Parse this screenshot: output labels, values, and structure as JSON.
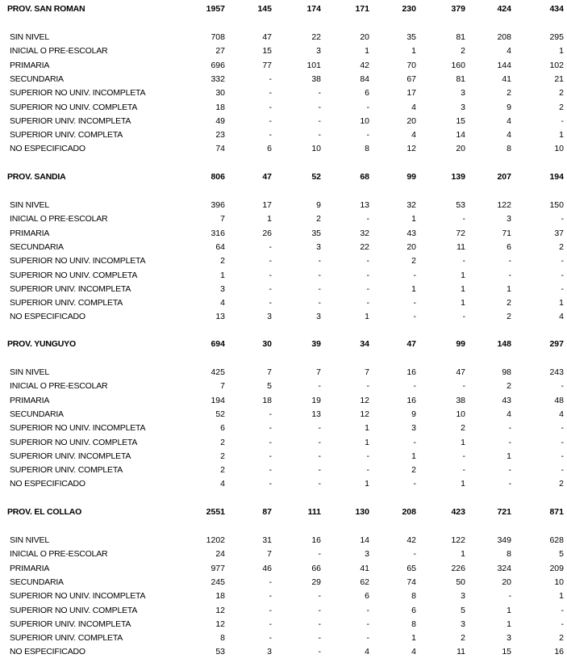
{
  "sections": [
    {
      "title": "PROV. SAN ROMAN",
      "totals": [
        "1957",
        "145",
        "174",
        "171",
        "230",
        "379",
        "424",
        "434"
      ],
      "rows": [
        {
          "label": "SIN NIVEL",
          "values": [
            "708",
            "47",
            "22",
            "20",
            "35",
            "81",
            "208",
            "295"
          ]
        },
        {
          "label": "INICIAL O PRE-ESCOLAR",
          "values": [
            "27",
            "15",
            "3",
            "1",
            "1",
            "2",
            "4",
            "1"
          ]
        },
        {
          "label": "PRIMARIA",
          "values": [
            "696",
            "77",
            "101",
            "42",
            "70",
            "160",
            "144",
            "102"
          ]
        },
        {
          "label": "SECUNDARIA",
          "values": [
            "332",
            "-",
            "38",
            "84",
            "67",
            "81",
            "41",
            "21"
          ]
        },
        {
          "label": "SUPERIOR NO UNIV. INCOMPLETA",
          "values": [
            "30",
            "-",
            "-",
            "6",
            "17",
            "3",
            "2",
            "2"
          ]
        },
        {
          "label": "SUPERIOR NO UNIV. COMPLETA",
          "values": [
            "18",
            "-",
            "-",
            "-",
            "4",
            "3",
            "9",
            "2"
          ]
        },
        {
          "label": "SUPERIOR UNIV. INCOMPLETA",
          "values": [
            "49",
            "-",
            "-",
            "10",
            "20",
            "15",
            "4",
            "-"
          ]
        },
        {
          "label": "SUPERIOR UNIV. COMPLETA",
          "values": [
            "23",
            "-",
            "-",
            "-",
            "4",
            "14",
            "4",
            "1"
          ]
        },
        {
          "label": "NO ESPECIFICADO",
          "values": [
            "74",
            "6",
            "10",
            "8",
            "12",
            "20",
            "8",
            "10"
          ]
        }
      ]
    },
    {
      "title": "PROV. SANDIA",
      "totals": [
        "806",
        "47",
        "52",
        "68",
        "99",
        "139",
        "207",
        "194"
      ],
      "rows": [
        {
          "label": "SIN NIVEL",
          "values": [
            "396",
            "17",
            "9",
            "13",
            "32",
            "53",
            "122",
            "150"
          ]
        },
        {
          "label": "INICIAL O PRE-ESCOLAR",
          "values": [
            "7",
            "1",
            "2",
            "-",
            "1",
            "-",
            "3",
            "-"
          ]
        },
        {
          "label": "PRIMARIA",
          "values": [
            "316",
            "26",
            "35",
            "32",
            "43",
            "72",
            "71",
            "37"
          ]
        },
        {
          "label": "SECUNDARIA",
          "values": [
            "64",
            "-",
            "3",
            "22",
            "20",
            "11",
            "6",
            "2"
          ]
        },
        {
          "label": "SUPERIOR NO UNIV. INCOMPLETA",
          "values": [
            "2",
            "-",
            "-",
            "-",
            "2",
            "-",
            "-",
            "-"
          ]
        },
        {
          "label": "SUPERIOR NO UNIV. COMPLETA",
          "values": [
            "1",
            "-",
            "-",
            "-",
            "-",
            "1",
            "-",
            "-"
          ]
        },
        {
          "label": "SUPERIOR UNIV. INCOMPLETA",
          "values": [
            "3",
            "-",
            "-",
            "-",
            "1",
            "1",
            "1",
            "-"
          ]
        },
        {
          "label": "SUPERIOR UNIV. COMPLETA",
          "values": [
            "4",
            "-",
            "-",
            "-",
            "-",
            "1",
            "2",
            "1"
          ]
        },
        {
          "label": "NO ESPECIFICADO",
          "values": [
            "13",
            "3",
            "3",
            "1",
            "-",
            "-",
            "2",
            "4"
          ]
        }
      ]
    },
    {
      "title": "PROV. YUNGUYO",
      "totals": [
        "694",
        "30",
        "39",
        "34",
        "47",
        "99",
        "148",
        "297"
      ],
      "rows": [
        {
          "label": "SIN NIVEL",
          "values": [
            "425",
            "7",
            "7",
            "7",
            "16",
            "47",
            "98",
            "243"
          ]
        },
        {
          "label": "INICIAL O PRE-ESCOLAR",
          "values": [
            "7",
            "5",
            "-",
            "-",
            "-",
            "-",
            "2",
            "-"
          ]
        },
        {
          "label": "PRIMARIA",
          "values": [
            "194",
            "18",
            "19",
            "12",
            "16",
            "38",
            "43",
            "48"
          ]
        },
        {
          "label": "SECUNDARIA",
          "values": [
            "52",
            "-",
            "13",
            "12",
            "9",
            "10",
            "4",
            "4"
          ]
        },
        {
          "label": "SUPERIOR NO UNIV. INCOMPLETA",
          "values": [
            "6",
            "-",
            "-",
            "1",
            "3",
            "2",
            "-",
            "-"
          ]
        },
        {
          "label": "SUPERIOR NO UNIV. COMPLETA",
          "values": [
            "2",
            "-",
            "-",
            "1",
            "-",
            "1",
            "-",
            "-"
          ]
        },
        {
          "label": "SUPERIOR UNIV. INCOMPLETA",
          "values": [
            "2",
            "-",
            "-",
            "-",
            "1",
            "-",
            "1",
            "-"
          ]
        },
        {
          "label": "SUPERIOR UNIV. COMPLETA",
          "values": [
            "2",
            "-",
            "-",
            "-",
            "2",
            "-",
            "-",
            "-"
          ]
        },
        {
          "label": "NO ESPECIFICADO",
          "values": [
            "4",
            "-",
            "-",
            "1",
            "-",
            "1",
            "-",
            "2"
          ]
        }
      ]
    },
    {
      "title": "PROV. EL COLLAO",
      "totals": [
        "2551",
        "87",
        "111",
        "130",
        "208",
        "423",
        "721",
        "871"
      ],
      "rows": [
        {
          "label": "SIN NIVEL",
          "values": [
            "1202",
            "31",
            "16",
            "14",
            "42",
            "122",
            "349",
            "628"
          ]
        },
        {
          "label": "INICIAL O PRE-ESCOLAR",
          "values": [
            "24",
            "7",
            "-",
            "3",
            "-",
            "1",
            "8",
            "5"
          ]
        },
        {
          "label": "PRIMARIA",
          "values": [
            "977",
            "46",
            "66",
            "41",
            "65",
            "226",
            "324",
            "209"
          ]
        },
        {
          "label": "SECUNDARIA",
          "values": [
            "245",
            "-",
            "29",
            "62",
            "74",
            "50",
            "20",
            "10"
          ]
        },
        {
          "label": "SUPERIOR NO UNIV. INCOMPLETA",
          "values": [
            "18",
            "-",
            "-",
            "6",
            "8",
            "3",
            "-",
            "1"
          ]
        },
        {
          "label": "SUPERIOR NO UNIV. COMPLETA",
          "values": [
            "12",
            "-",
            "-",
            "-",
            "6",
            "5",
            "1",
            "-"
          ]
        },
        {
          "label": "SUPERIOR UNIV. INCOMPLETA",
          "values": [
            "12",
            "-",
            "-",
            "-",
            "8",
            "3",
            "1",
            "-"
          ]
        },
        {
          "label": "SUPERIOR UNIV. COMPLETA",
          "values": [
            "8",
            "-",
            "-",
            "-",
            "1",
            "2",
            "3",
            "2"
          ]
        },
        {
          "label": "NO ESPECIFICADO",
          "values": [
            "53",
            "3",
            "-",
            "4",
            "4",
            "11",
            "15",
            "16"
          ]
        }
      ]
    }
  ]
}
